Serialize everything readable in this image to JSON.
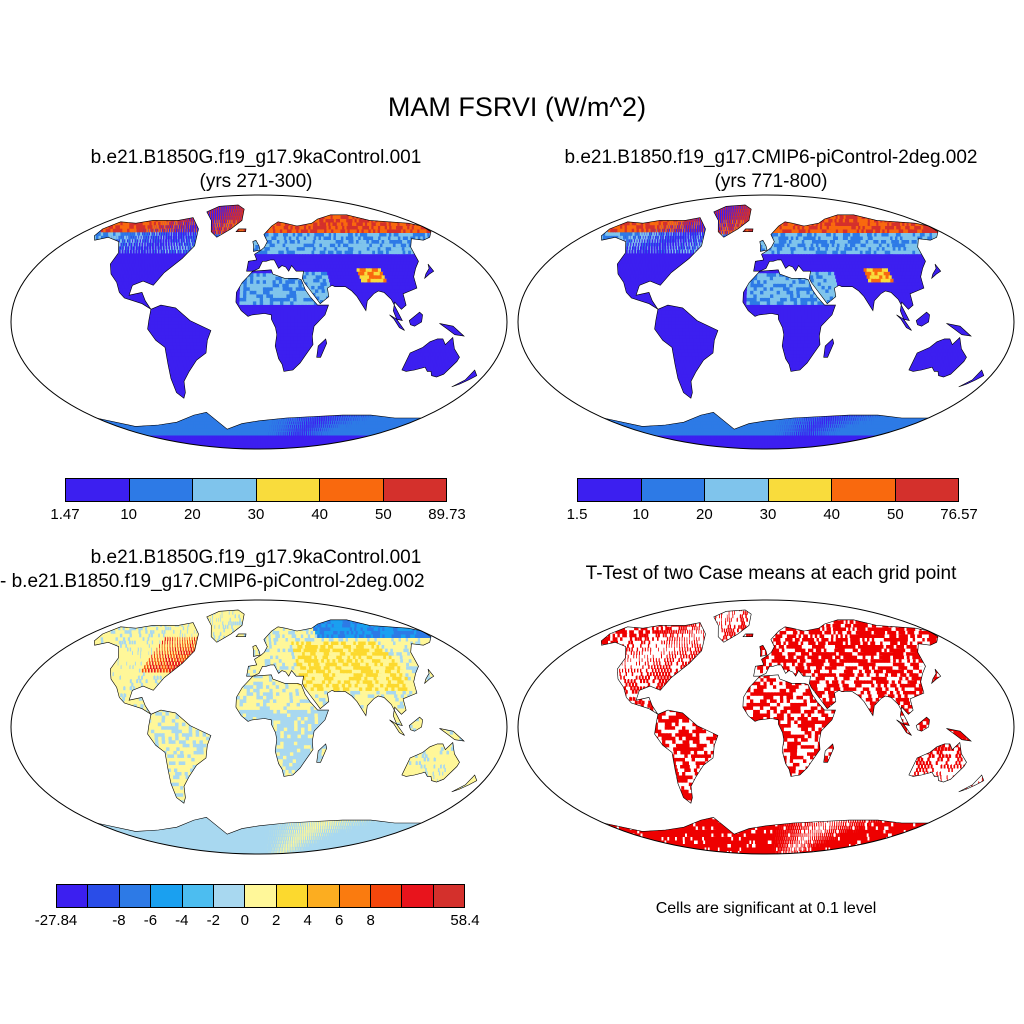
{
  "title": "MAM FSRVI (W/m^2)",
  "panels": [
    {
      "title_line1": "b.e21.B1850G.f19_g17.9kaControl.001",
      "title_line2": "(yrs 271-300)",
      "colorbar": {
        "colors": [
          "#3c1ff0",
          "#2d7ae6",
          "#7fc4ec",
          "#f9dc3c",
          "#f9690e",
          "#d4302c"
        ],
        "labels": [
          "1.47",
          "10",
          "20",
          "30",
          "40",
          "50",
          "89.73"
        ]
      }
    },
    {
      "title_line1": "b.e21.B1850.f19_g17.CMIP6-piControl-2deg.002",
      "title_line2": "(yrs 771-800)",
      "colorbar": {
        "colors": [
          "#3c1ff0",
          "#2d7ae6",
          "#7fc4ec",
          "#f9dc3c",
          "#f9690e",
          "#d4302c"
        ],
        "labels": [
          "1.5",
          "10",
          "20",
          "30",
          "40",
          "50",
          "76.57"
        ]
      }
    },
    {
      "title_line1": "b.e21.B1850G.f19_g17.9kaControl.001",
      "title_line2": "- b.e21.B1850.f19_g17.CMIP6-piControl-2deg.002",
      "colorbar": {
        "colors": [
          "#3c1ff0",
          "#2a4de8",
          "#2d7ae6",
          "#1aa0f0",
          "#4cbdf0",
          "#a8d8f0",
          "#fff799",
          "#fcd92e",
          "#fcad20",
          "#fa7b0f",
          "#f4470c",
          "#e8141c",
          "#d4302c"
        ],
        "labels": [
          "-27.84",
          "-8",
          "-6",
          "-4",
          "-2",
          "0",
          "2",
          "4",
          "6",
          "8",
          "58.4"
        ]
      }
    },
    {
      "title_line1": "T-Test of two Case means at each grid point",
      "note": "Cells are significant at 0.1 level",
      "significant_color": "#ee0000"
    }
  ]
}
